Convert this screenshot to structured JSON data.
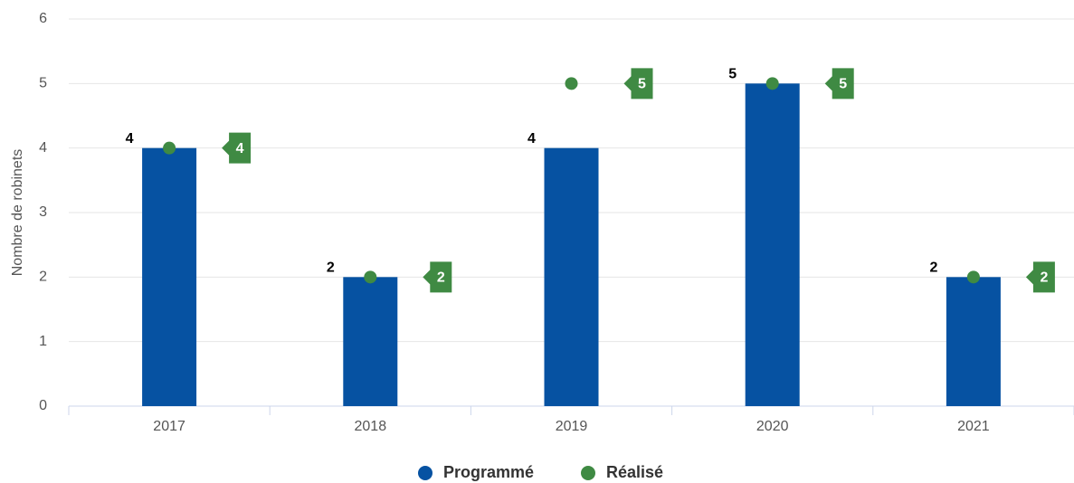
{
  "chart_data": {
    "type": "bar",
    "y_label": "Nombre de robinets",
    "categories": [
      "2017",
      "2018",
      "2019",
      "2020",
      "2021"
    ],
    "series": [
      {
        "name": "Programmé",
        "type": "bar",
        "color": "#0652a2",
        "values": [
          4,
          2,
          4,
          5,
          2
        ]
      },
      {
        "name": "Réalisé",
        "type": "scatter",
        "color": "#3f8a43",
        "values": [
          4,
          2,
          5,
          5,
          2
        ]
      }
    ],
    "ylim": [
      0,
      6
    ],
    "yticks": [
      0,
      1,
      2,
      3,
      4,
      5,
      6
    ],
    "grid": true,
    "legend": "bottom"
  }
}
